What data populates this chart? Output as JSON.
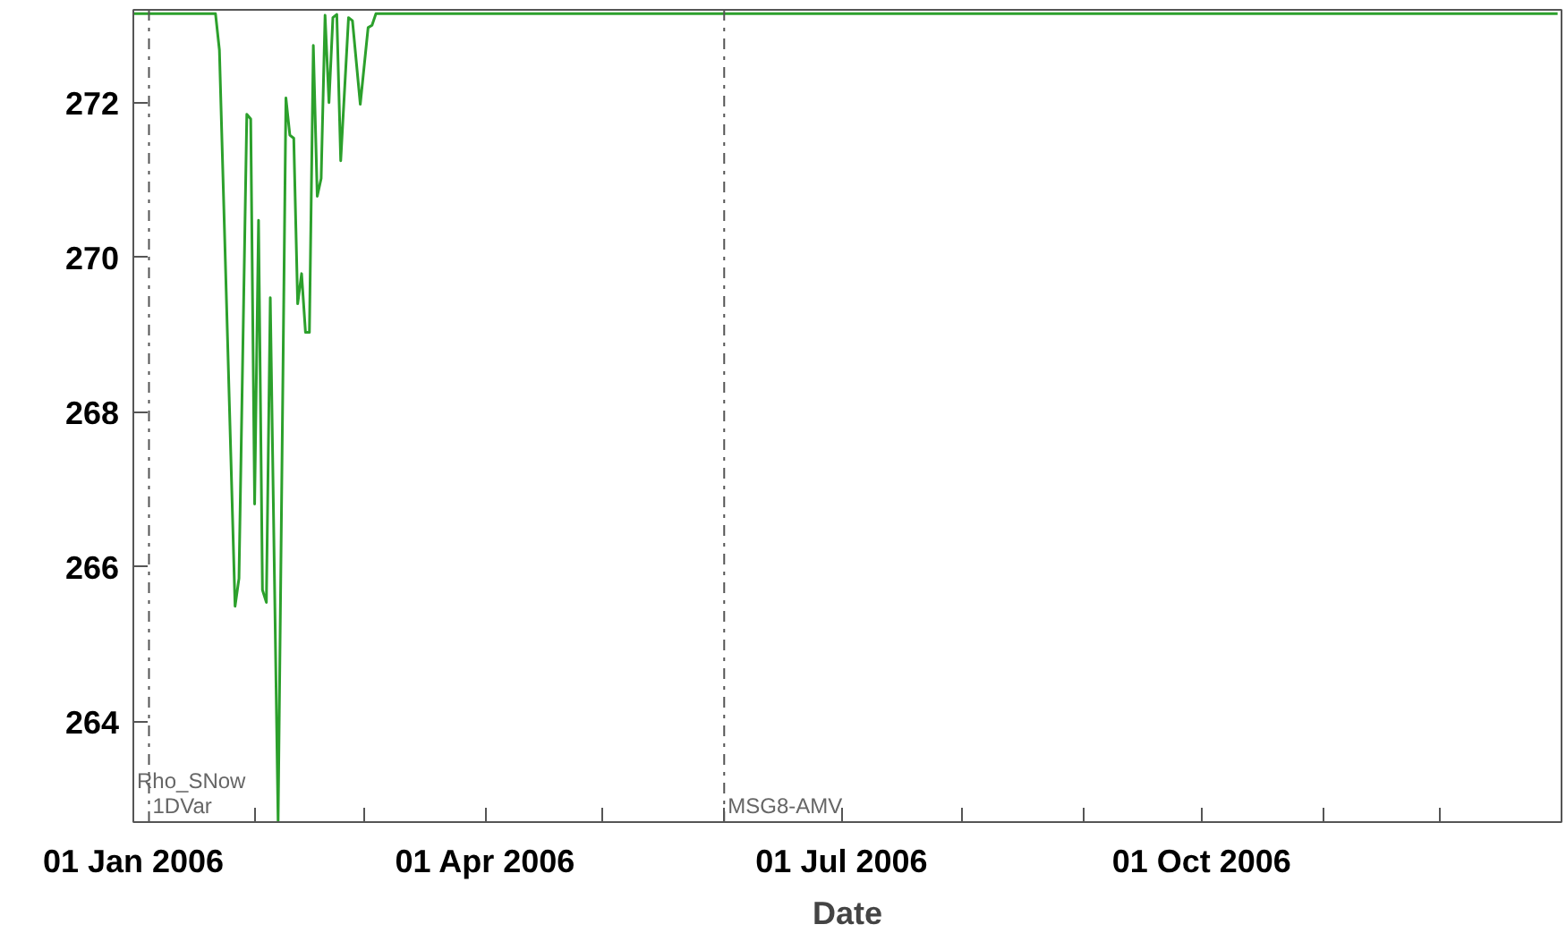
{
  "chart_data": {
    "type": "line",
    "xlabel": "Date",
    "x": [
      "2006-01-01",
      "2006-01-22",
      "2006-01-23",
      "2006-01-27",
      "2006-01-28",
      "2006-01-30",
      "2006-01-31",
      "2006-02-01",
      "2006-02-02",
      "2006-02-03",
      "2006-02-04",
      "2006-02-05",
      "2006-02-07",
      "2006-02-09",
      "2006-02-10",
      "2006-02-11",
      "2006-02-12",
      "2006-02-13",
      "2006-02-14",
      "2006-02-15",
      "2006-02-16",
      "2006-02-17",
      "2006-02-18",
      "2006-02-19",
      "2006-02-20",
      "2006-02-21",
      "2006-02-22",
      "2006-02-23",
      "2006-02-25",
      "2006-02-26",
      "2006-02-28",
      "2006-03-02",
      "2006-03-03",
      "2006-03-04",
      "2006-12-31"
    ],
    "series": [
      {
        "color": "#2ca02c",
        "values": [
          273.15,
          273.15,
          272.68,
          265.49,
          265.85,
          271.85,
          271.79,
          266.81,
          270.48,
          265.7,
          265.54,
          269.48,
          262.7,
          272.06,
          271.58,
          271.54,
          269.4,
          269.79,
          269.03,
          269.03,
          272.74,
          270.79,
          271.02,
          273.13,
          272.0,
          273.1,
          273.14,
          271.25,
          273.1,
          273.06,
          271.98,
          272.97,
          273.0,
          273.15,
          273.15
        ]
      }
    ],
    "xlim": [
      "2006-01-01",
      "2007-01-01"
    ],
    "xticks": [
      {
        "value": "2006-01-01",
        "label": "01 Jan 2006"
      },
      {
        "value": "2006-02-01",
        "label": null
      },
      {
        "value": "2006-03-01",
        "label": null
      },
      {
        "value": "2006-04-01",
        "label": "01 Apr 2006"
      },
      {
        "value": "2006-05-01",
        "label": null
      },
      {
        "value": "2006-06-01",
        "label": null
      },
      {
        "value": "2006-07-01",
        "label": "01 Jul 2006"
      },
      {
        "value": "2006-08-01",
        "label": null
      },
      {
        "value": "2006-09-01",
        "label": null
      },
      {
        "value": "2006-10-01",
        "label": "01 Oct 2006"
      },
      {
        "value": "2006-11-01",
        "label": null
      },
      {
        "value": "2006-12-01",
        "label": null
      }
    ],
    "ylim": [
      262.7,
      273.2
    ],
    "yticks": [
      264,
      266,
      268,
      270,
      272
    ],
    "ref_lines": [
      {
        "axis": "x",
        "value": "2006-01-05",
        "label": "1DVar",
        "color": "#555555",
        "line_style": "dashdot"
      },
      {
        "axis": "x",
        "value": "2006-06-01",
        "label": "MSG8-AMV",
        "color": "#555555",
        "line_style": "dashdot"
      }
    ],
    "annotations": [
      "Rho_SNow"
    ],
    "grid": false,
    "line_style": "solid"
  }
}
